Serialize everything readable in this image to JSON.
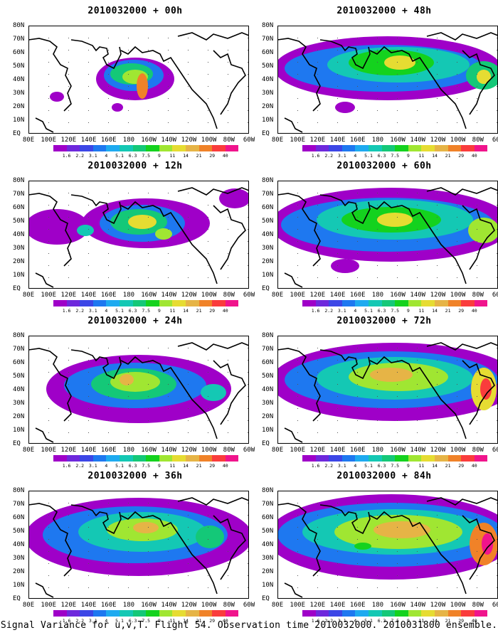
{
  "panels": [
    {
      "title": "2010032000 + 00h"
    },
    {
      "title": "2010032000 + 48h"
    },
    {
      "title": "2010032000 + 12h"
    },
    {
      "title": "2010032000 + 60h"
    },
    {
      "title": "2010032000 + 24h"
    },
    {
      "title": "2010032000 + 72h"
    },
    {
      "title": "2010032000 + 36h"
    },
    {
      "title": "2010032000 + 84h"
    }
  ],
  "lat_labels": [
    "80N",
    "70N",
    "60N",
    "50N",
    "40N",
    "30N",
    "20N",
    "10N",
    "EQ"
  ],
  "lon_labels": [
    "80E",
    "100E",
    "120E",
    "140E",
    "160E",
    "180",
    "160W",
    "140W",
    "120W",
    "100W",
    "80W",
    "60W"
  ],
  "colorbar": {
    "labels": [
      "1.6",
      "2.2",
      "3.1",
      "4",
      "5.1",
      "6.3",
      "7.5",
      "9",
      "11",
      "14",
      "21",
      "29",
      "40"
    ],
    "colors": [
      "#9f00c8",
      "#6e28dc",
      "#3c46e6",
      "#1e78f0",
      "#1eaaf0",
      "#14c8b4",
      "#14c878",
      "#14d21e",
      "#a0e632",
      "#e6dc32",
      "#e6b446",
      "#f08228",
      "#fa3c3c",
      "#f0148c"
    ]
  },
  "footer": "Signal Variance for u,v,T. Flight 54. Observation time 2010032000. 2010031800 ensemble."
}
